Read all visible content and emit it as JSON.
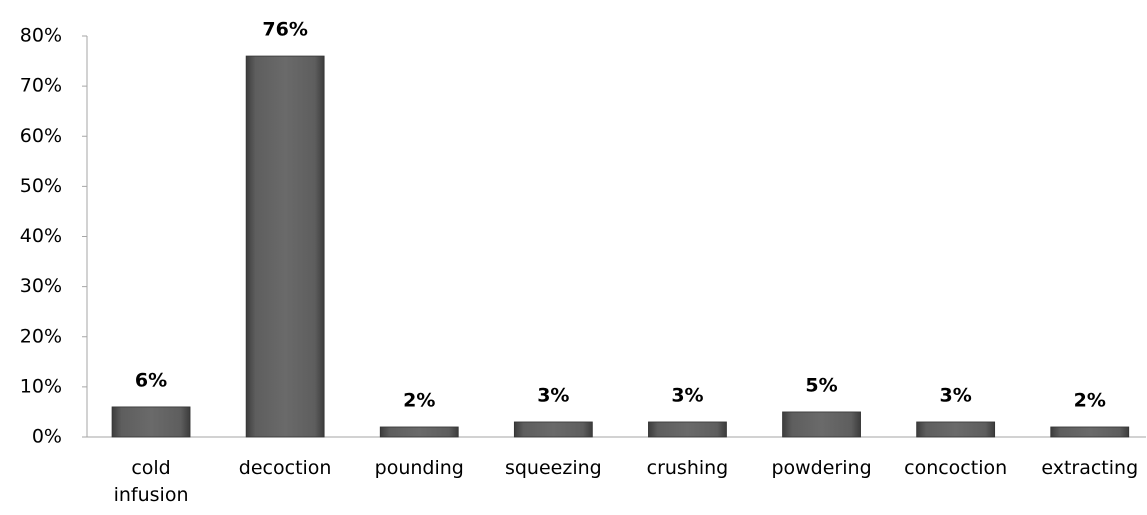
{
  "chart_data": {
    "type": "bar",
    "categories": [
      "cold infusion",
      "decoction",
      "pounding",
      "squeezing",
      "crushing",
      "powdering",
      "concoction",
      "extracting"
    ],
    "values": [
      6,
      76,
      2,
      3,
      3,
      5,
      3,
      2
    ],
    "value_labels": [
      "6%",
      "76%",
      "2%",
      "3%",
      "3%",
      "5%",
      "3%",
      "2%"
    ],
    "color": "#5a5a5a",
    "ylim": [
      0,
      80
    ],
    "yticks": [
      {
        "value": 0,
        "label": "0%"
      },
      {
        "value": 10,
        "label": "10%"
      },
      {
        "value": 20,
        "label": "20%"
      },
      {
        "value": 30,
        "label": "30%"
      },
      {
        "value": 40,
        "label": "40%"
      },
      {
        "value": 50,
        "label": "50%"
      },
      {
        "value": 60,
        "label": "60%"
      },
      {
        "value": 70,
        "label": "70%"
      },
      {
        "value": 80,
        "label": "80%"
      }
    ],
    "grid": false
  }
}
